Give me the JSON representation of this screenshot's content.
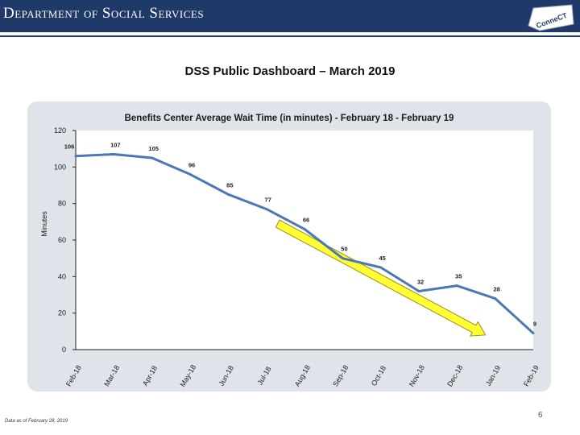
{
  "header": {
    "title": "Department of Social Services",
    "logo_text": "ConneCT"
  },
  "page": {
    "title": "DSS Public Dashboard – March  2019",
    "footnote": "Data as of February 28, 2019",
    "page_number": "6"
  },
  "chart_data": {
    "type": "line",
    "title": "Benefits Center Average Wait Time (in minutes) - February 18 - February  19",
    "xlabel": "",
    "ylabel": "Minutes",
    "categories": [
      "Feb-18",
      "Mar-18",
      "Apr-18",
      "May-18",
      "Jun-18",
      "Jul-18",
      "Aug-18",
      "Sep-18",
      "Oct-18",
      "Nov-18",
      "Dec-18",
      "Jan-19",
      "Feb-19"
    ],
    "series": [
      {
        "name": "Average Wait Time",
        "color": "#4a78b5",
        "values": [
          106,
          107,
          105,
          96,
          85,
          77,
          66,
          50,
          45,
          32,
          35,
          28,
          9
        ]
      }
    ],
    "ylim": [
      0,
      120
    ],
    "yticks": [
      0,
      20,
      40,
      60,
      80,
      100,
      120
    ],
    "annotations": [
      {
        "type": "trend-arrow",
        "description": "downward trend",
        "from": {
          "x": "Jul-18",
          "y": 69
        },
        "to": {
          "x": "Jan-19",
          "y": 8
        },
        "fill": "#ffff33",
        "stroke": "#a08c20"
      }
    ],
    "colors": {
      "panel": "#dfe3ea",
      "plot": "#ffffff",
      "axis": "#222222"
    }
  }
}
